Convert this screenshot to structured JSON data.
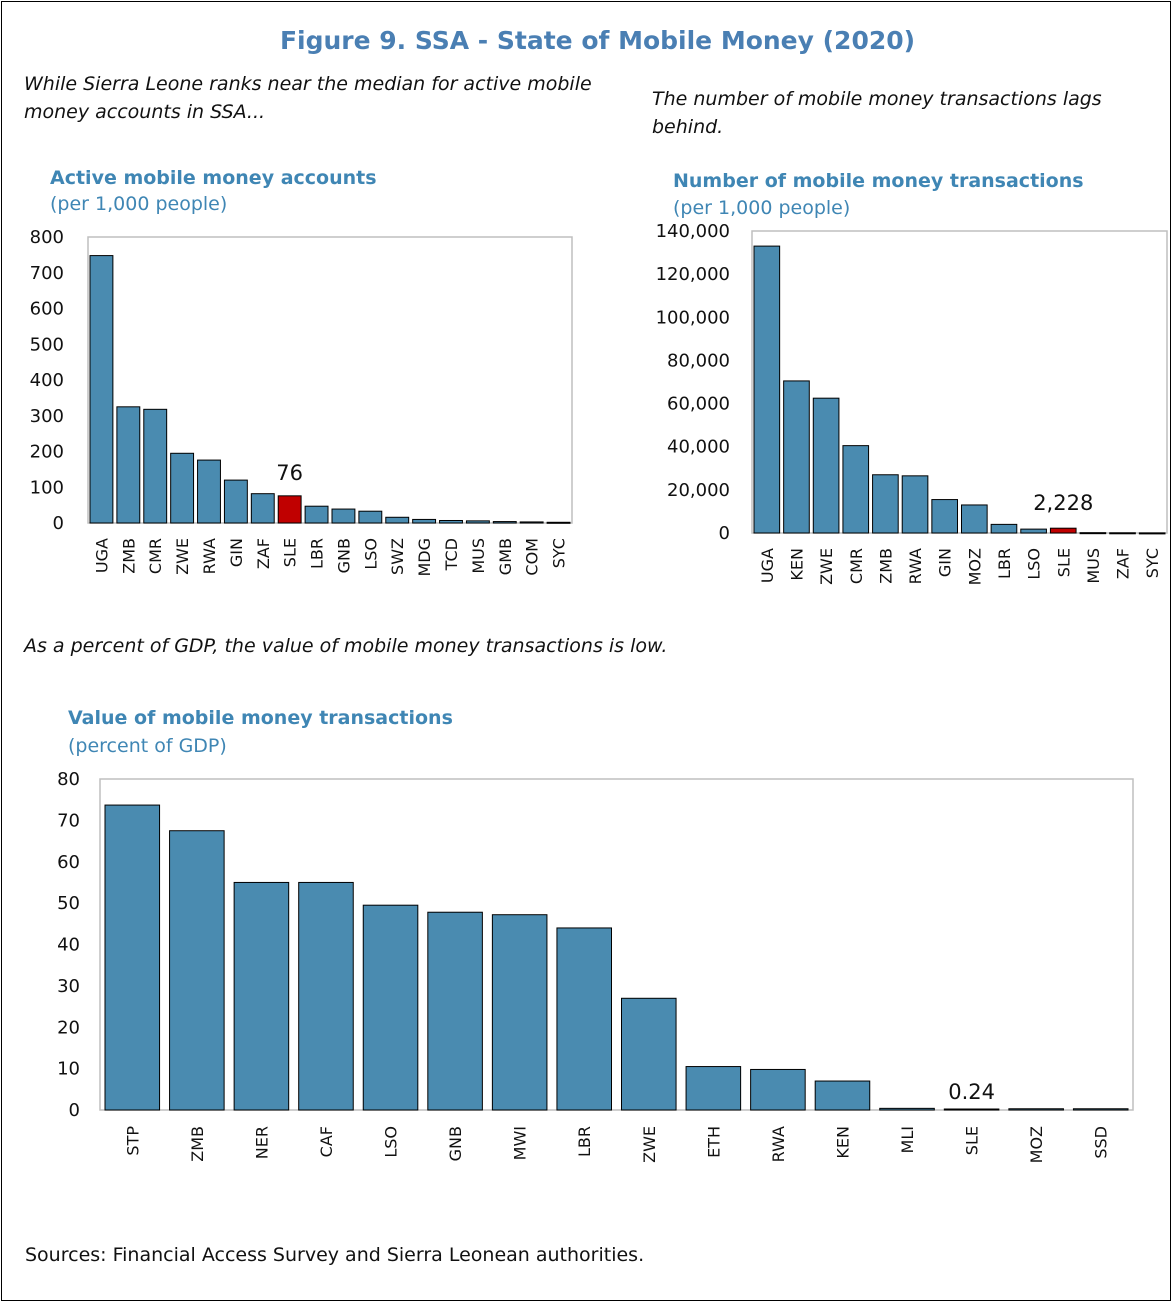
{
  "figure": {
    "title": "Figure 9. SSA - State of Mobile Money (2020)",
    "caption_top_left": "While Sierra Leone ranks near the median for active mobile money accounts in SSA...",
    "caption_top_right": "The number of mobile money transactions lags behind.",
    "caption_bottom": "As a percent of GDP, the value of mobile money transactions is low.",
    "sources": "Sources: Financial Access Survey and Sierra Leonean authorities."
  },
  "colors": {
    "bar": "#4a8bb0",
    "highlight": "#c00000",
    "bar_border": "#000000",
    "title": "#4a7fb3",
    "chart_title": "#3f86b4",
    "frame": "#bfbfbf"
  },
  "chart_data": [
    {
      "type": "bar",
      "title": "Active mobile money accounts",
      "subtitle": "(per 1,000 people)",
      "categories": [
        "UGA",
        "ZMB",
        "CMR",
        "ZWE",
        "RWA",
        "GIN",
        "ZAF",
        "SLE",
        "LBR",
        "GNB",
        "LSO",
        "SWZ",
        "MDG",
        "TCD",
        "MUS",
        "GMB",
        "COM",
        "SYC"
      ],
      "values": [
        748,
        325,
        318,
        195,
        176,
        120,
        82,
        76,
        47,
        39,
        33,
        16,
        10,
        7,
        6,
        4,
        3,
        2
      ],
      "highlight": "SLE",
      "data_label": "76",
      "ylim": [
        0,
        800
      ],
      "yticks": [
        0,
        100,
        200,
        300,
        400,
        500,
        600,
        700,
        800
      ],
      "ytick_labels": [
        "0",
        "100",
        "200",
        "300",
        "400",
        "500",
        "600",
        "700",
        "800"
      ]
    },
    {
      "type": "bar",
      "title": "Number of mobile money transactions",
      "subtitle": "(per 1,000 people)",
      "categories": [
        "UGA",
        "KEN",
        "ZWE",
        "CMR",
        "ZMB",
        "RWA",
        "GIN",
        "MOZ",
        "LBR",
        "LSO",
        "SLE",
        "MUS",
        "ZAF",
        "SYC"
      ],
      "values": [
        133000,
        70500,
        62500,
        40500,
        27000,
        26500,
        15500,
        13000,
        4000,
        1800,
        2228,
        150,
        100,
        50
      ],
      "highlight": "SLE",
      "data_label": "2,228",
      "ylim": [
        0,
        140000
      ],
      "yticks": [
        0,
        20000,
        40000,
        60000,
        80000,
        100000,
        120000,
        140000
      ],
      "ytick_labels": [
        "0",
        "20,000",
        "40,000",
        "60,000",
        "80,000",
        "100,000",
        "120,000",
        "140,000"
      ]
    },
    {
      "type": "bar",
      "title": "Value of mobile money transactions",
      "subtitle": "(percent of GDP)",
      "categories": [
        "STP",
        "ZMB",
        "NER",
        "CAF",
        "LSO",
        "GNB",
        "MWI",
        "LBR",
        "ZWE",
        "ETH",
        "RWA",
        "KEN",
        "MLI",
        "SLE",
        "MOZ",
        "SSD"
      ],
      "values": [
        73.7,
        67.5,
        55.0,
        55.0,
        49.5,
        47.8,
        47.2,
        44.0,
        27.0,
        10.5,
        9.8,
        7.0,
        0.4,
        0.24,
        0.3,
        0.3
      ],
      "highlight": "SLE",
      "data_label": "0.24",
      "ylim": [
        0,
        80
      ],
      "yticks": [
        0,
        10,
        20,
        30,
        40,
        50,
        60,
        70,
        80
      ],
      "ytick_labels": [
        "0",
        "10",
        "20",
        "30",
        "40",
        "50",
        "60",
        "70",
        "80"
      ]
    }
  ]
}
